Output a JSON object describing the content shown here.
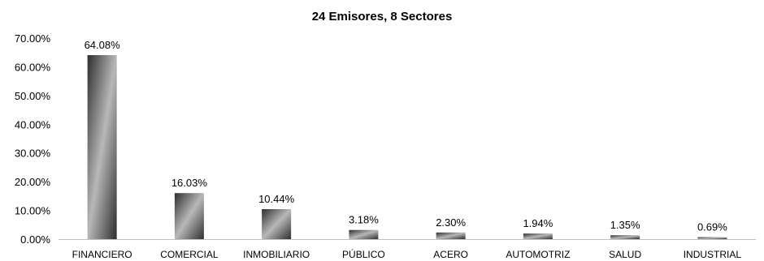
{
  "chart_data": {
    "type": "bar",
    "title": "24 Emisores, 8 Sectores",
    "xlabel": "",
    "ylabel": "",
    "categories": [
      "FINANCIERO",
      "COMERCIAL",
      "INMOBILIARIO",
      "PÚBLICO",
      "ACERO",
      "AUTOMOTRIZ",
      "SALUD",
      "INDUSTRIAL"
    ],
    "values": [
      64.08,
      16.03,
      10.44,
      3.18,
      2.3,
      1.94,
      1.35,
      0.69
    ],
    "data_labels": [
      "64.08%",
      "16.03%",
      "10.44%",
      "3.18%",
      "2.30%",
      "1.94%",
      "1.35%",
      "0.69%"
    ],
    "ylim": [
      0,
      70
    ],
    "yticks": [
      0,
      10,
      20,
      30,
      40,
      50,
      60,
      70
    ],
    "ytick_labels": [
      "0.00%",
      "10.00%",
      "20.00%",
      "30.00%",
      "40.00%",
      "50.00%",
      "60.00%",
      "70.00%"
    ],
    "grid": false,
    "legend": "none",
    "colors": {
      "bar_dark": "#2e2e2e",
      "bar_light": "#b8b8b8",
      "axis": "#bfbfbf",
      "text": "#000000"
    }
  }
}
